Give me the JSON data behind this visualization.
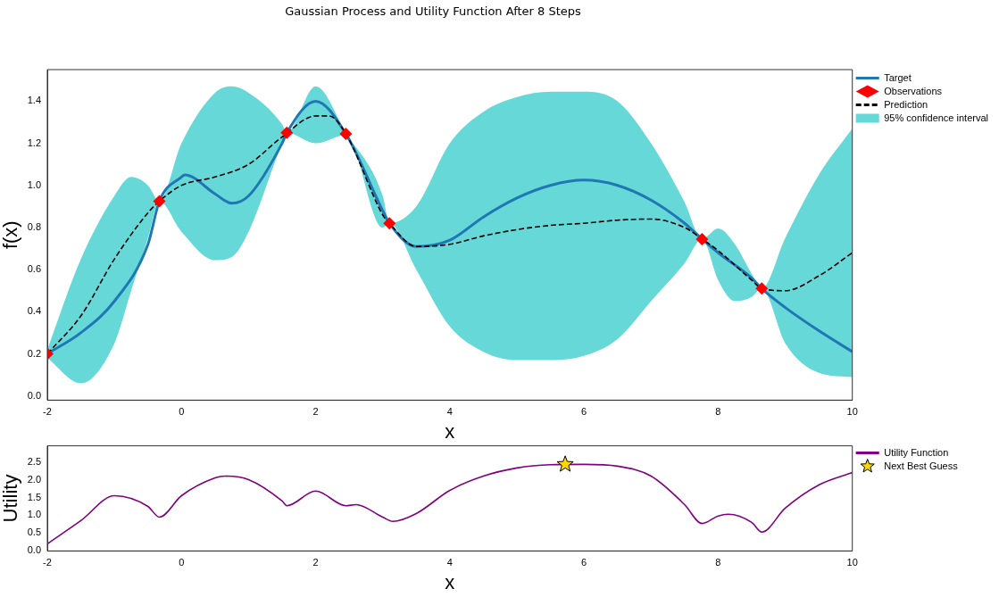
{
  "chart_data": [
    {
      "type": "line",
      "title": "Gaussian Process and Utility Function After 8 Steps",
      "xlabel": "x",
      "ylabel": "f(x)",
      "xlim": [
        -2,
        10
      ],
      "ylim": [
        -0.02,
        1.55
      ],
      "xticks": [
        -2,
        0,
        2,
        4,
        6,
        8,
        10
      ],
      "yticks": [
        {
          "value": 0,
          "label": "0.0"
        },
        0.2,
        0.4,
        0.6,
        0.8,
        {
          "value": 1,
          "label": "1.0"
        },
        1.2,
        1.4
      ],
      "grid": false,
      "legend": "right",
      "series": [
        {
          "name": "Target",
          "type": "line",
          "color": "#1f77b4",
          "x": [
            -2,
            -1.5,
            -1,
            -0.5,
            -0.33,
            0,
            0.05,
            0.5,
            0.75,
            1,
            1.5,
            1.57,
            2,
            2.45,
            3,
            3.1,
            3.5,
            4,
            4.5,
            5,
            5.5,
            6,
            6.5,
            7,
            7.5,
            7.76,
            8,
            8.5,
            8.65,
            9,
            9.5,
            10
          ],
          "values": [
            0.2,
            0.3,
            0.45,
            0.72,
            0.925,
            1.04,
            1.05,
            0.96,
            0.915,
            0.95,
            1.2,
            1.25,
            1.4,
            1.245,
            0.88,
            0.82,
            0.71,
            0.74,
            0.85,
            0.94,
            1.0,
            1.025,
            1.0,
            0.93,
            0.82,
            0.745,
            0.68,
            0.56,
            0.51,
            0.42,
            0.31,
            0.21
          ]
        },
        {
          "name": "Observations",
          "type": "scatter",
          "marker": "diamond",
          "color": "#ff0000",
          "x": [
            -2,
            -0.33,
            1.57,
            2.45,
            3.1,
            7.76,
            8.65
          ],
          "values": [
            0.2,
            0.925,
            1.25,
            1.245,
            0.82,
            0.745,
            0.51
          ]
        },
        {
          "name": "Prediction",
          "type": "line",
          "line_style": "dashed",
          "color": "#000000",
          "x": [
            -2,
            -1.5,
            -1,
            -0.5,
            -0.33,
            0,
            0.5,
            1,
            1.5,
            2,
            2.2,
            2.45,
            3,
            3.1,
            3.5,
            4,
            4.5,
            5,
            5.5,
            6,
            6.5,
            7,
            7.5,
            7.76,
            8,
            8.5,
            8.65,
            9,
            9.5,
            10
          ],
          "values": [
            0.2,
            0.38,
            0.65,
            0.87,
            0.925,
            1.0,
            1.04,
            1.1,
            1.23,
            1.33,
            1.33,
            1.245,
            0.86,
            0.82,
            0.71,
            0.72,
            0.76,
            0.79,
            0.81,
            0.82,
            0.835,
            0.84,
            0.8,
            0.745,
            0.69,
            0.55,
            0.51,
            0.5,
            0.57,
            0.68
          ]
        },
        {
          "name": "95% confidence interval",
          "type": "area",
          "color": "#67d8d8",
          "x": [
            -2,
            -1.5,
            -1,
            -0.75,
            -0.5,
            -0.33,
            0,
            0.5,
            0.75,
            1,
            1.5,
            1.57,
            2,
            2.45,
            3,
            3.1,
            3.5,
            4,
            4.5,
            5,
            5.5,
            6,
            6.5,
            7,
            7.5,
            7.76,
            8,
            8.25,
            8.5,
            8.65,
            9,
            9.5,
            10
          ],
          "values": [
            null,
            null,
            null,
            null,
            null,
            null,
            null,
            null,
            null,
            null,
            null,
            null,
            null,
            null,
            null,
            null,
            null,
            null,
            null,
            null,
            null,
            null,
            null,
            null,
            null,
            null,
            null,
            null,
            null,
            null,
            null,
            null,
            null
          ],
          "lower": [
            0.18,
            0.06,
            0.25,
            0.5,
            0.75,
            0.925,
            0.78,
            0.645,
            0.66,
            0.78,
            1.2,
            1.25,
            1.2,
            1.24,
            0.8,
            0.82,
            0.6,
            0.33,
            0.21,
            0.17,
            0.17,
            0.19,
            0.27,
            0.45,
            0.63,
            0.745,
            0.55,
            0.45,
            0.47,
            0.51,
            0.25,
            0.11,
            0.09
          ],
          "upper": [
            0.22,
            0.65,
            0.95,
            1.04,
            1.0,
            0.925,
            1.2,
            1.44,
            1.47,
            1.44,
            1.29,
            1.25,
            1.47,
            1.25,
            0.95,
            0.82,
            0.9,
            1.2,
            1.35,
            1.42,
            1.445,
            1.445,
            1.4,
            1.2,
            0.92,
            0.745,
            0.795,
            0.72,
            0.58,
            0.51,
            0.75,
            1.05,
            1.27
          ]
        }
      ]
    },
    {
      "type": "line",
      "xlabel": "x",
      "ylabel": "Utility",
      "xlim": [
        -2,
        10
      ],
      "ylim": [
        0,
        2.95
      ],
      "xticks": [
        -2,
        0,
        2,
        4,
        6,
        8,
        10
      ],
      "yticks": [
        {
          "value": 0,
          "label": "0.0"
        },
        0.5,
        {
          "value": 1,
          "label": "1.0"
        },
        1.5,
        {
          "value": 2,
          "label": "2.0"
        },
        2.5
      ],
      "grid": false,
      "legend": "right",
      "series": [
        {
          "name": "Utility Function",
          "type": "line",
          "color": "#800080",
          "x": [
            -2,
            -1.5,
            -1,
            -0.5,
            -0.33,
            0,
            0.5,
            0.65,
            1,
            1.5,
            1.57,
            2,
            2.45,
            2.6,
            3,
            3.15,
            3.5,
            4,
            4.5,
            5,
            5.5,
            6,
            6.5,
            7,
            7.5,
            7.76,
            8,
            8.15,
            8.5,
            8.65,
            9,
            9.5,
            10
          ],
          "values": [
            0.2,
            0.85,
            1.55,
            1.25,
            0.95,
            1.55,
            2.05,
            2.1,
            2.0,
            1.4,
            1.27,
            1.68,
            1.27,
            1.3,
            0.95,
            0.83,
            1.05,
            1.7,
            2.1,
            2.33,
            2.42,
            2.43,
            2.38,
            2.1,
            1.3,
            0.77,
            0.98,
            1.03,
            0.8,
            0.53,
            1.2,
            1.85,
            2.2
          ]
        },
        {
          "name": "Next Best Guess",
          "type": "scatter",
          "marker": "star",
          "color": "#ffd700",
          "x": [
            5.72
          ],
          "values": [
            2.43
          ]
        }
      ]
    }
  ]
}
